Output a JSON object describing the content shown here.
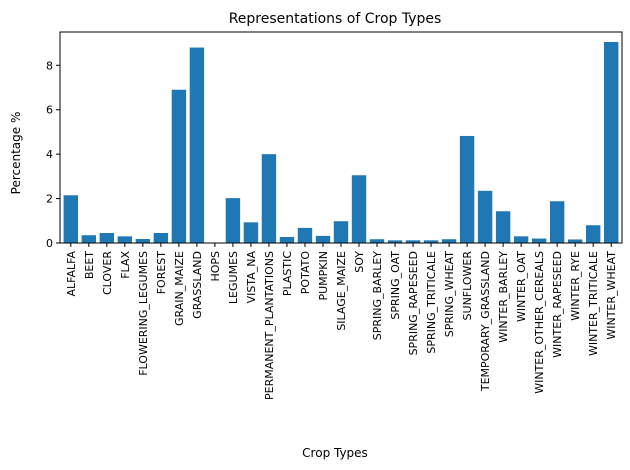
{
  "chart_data": {
    "type": "bar",
    "title": "Representations of Crop Types",
    "xlabel": "Crop Types",
    "ylabel": "Percentage %",
    "ylim": [
      0,
      9.5
    ],
    "yticks": [
      0,
      2,
      4,
      6,
      8
    ],
    "grid": false,
    "legend": "none",
    "bar_color": "#1f77b4",
    "categories": [
      "ALFALFA",
      "BEET",
      "CLOVER",
      "FLAX",
      "FLOWERING_LEGUMES",
      "FOREST",
      "GRAIN_MAIZE",
      "GRASSLAND",
      "HOPS",
      "LEGUMES",
      "VISTA_NA",
      "PERMANENT_PLANTATIONS",
      "PLASTIC",
      "POTATO",
      "PUMPKIN",
      "SILAGE_MAIZE",
      "SOY",
      "SPRING_BARLEY",
      "SPRING_OAT",
      "SPRING_RAPESEED",
      "SPRING_TRITICALE",
      "SPRING_WHEAT",
      "SUNFLOWER",
      "TEMPORARY_GRASSLAND",
      "WINTER_BARLEY",
      "WINTER_OAT",
      "WINTER_OTHER_CEREALS",
      "WINTER_RAPESEED",
      "WINTER_RYE",
      "WINTER_TRITICALE",
      "WINTER_WHEAT"
    ],
    "values": [
      2.15,
      0.35,
      0.45,
      0.3,
      0.18,
      0.45,
      6.9,
      8.8,
      0.02,
      2.02,
      0.93,
      4.0,
      0.27,
      0.68,
      0.32,
      0.98,
      3.05,
      0.17,
      0.12,
      0.12,
      0.12,
      0.17,
      4.82,
      2.35,
      1.43,
      0.3,
      0.2,
      1.88,
      0.16,
      0.8,
      9.05
    ]
  }
}
